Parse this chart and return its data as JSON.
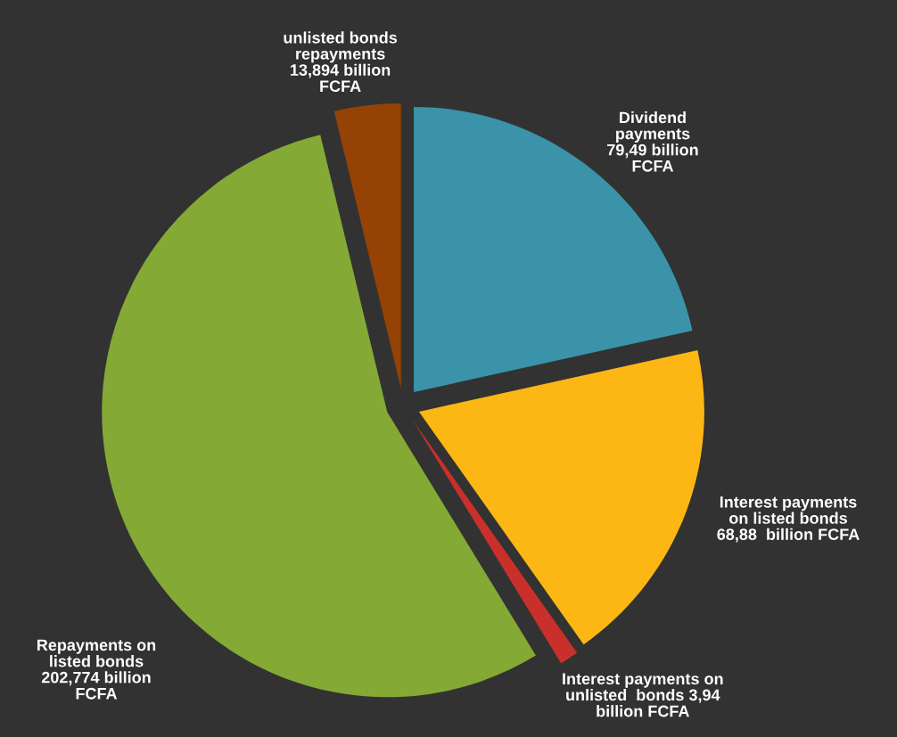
{
  "chart_data": {
    "type": "pie",
    "categories": [
      "Dividend\npayments\n79,49 billion\nFCFA",
      "Interest payments\non listed bonds\n68,88  billion FCFA",
      "Interest payments on\nunlisted  bonds 3,94\nbillion FCFA",
      "Repayments on\nlisted bonds\n202,774 billion\nFCFA",
      "unlisted bonds\nrepayments\n13,894 billion\nFCFA"
    ],
    "values": [
      79.49,
      68.88,
      3.94,
      202.774,
      13.894
    ],
    "colors": [
      "#3a93a8",
      "#fdb714",
      "#c9302c",
      "#84a935",
      "#954205"
    ],
    "legend": false
  }
}
